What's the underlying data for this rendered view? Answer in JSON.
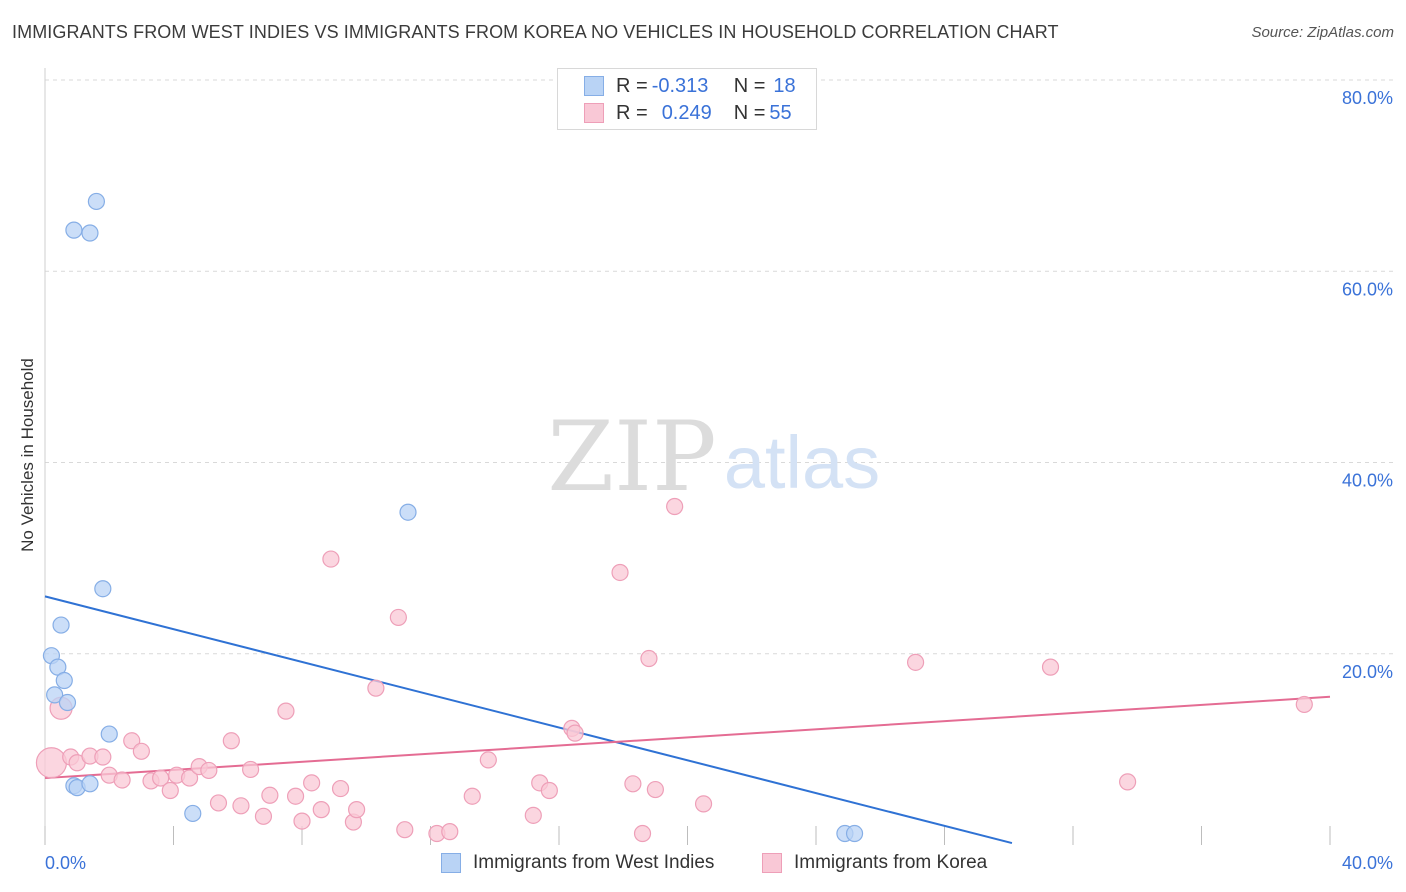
{
  "title": "IMMIGRANTS FROM WEST INDIES VS IMMIGRANTS FROM KOREA NO VEHICLES IN HOUSEHOLD CORRELATION CHART",
  "source": "Source: ZipAtlas.com",
  "watermark": {
    "zip": "ZIP",
    "atlas": "atlas"
  },
  "legend": {
    "rows": [
      {
        "r_label": "R = ",
        "r_value": "-0.313",
        "n_label": "N = ",
        "n_value": "18"
      },
      {
        "r_label": "R = ",
        "r_value": "0.249",
        "n_label": "N = ",
        "n_value": "55"
      }
    ]
  },
  "bottom_legend": {
    "west_indies": "Immigrants from West Indies",
    "korea": "Immigrants from Korea"
  },
  "colors": {
    "blue_fill": "#b9d3f5",
    "blue_stroke": "#86aee6",
    "blue_line": "#2f72d4",
    "pink_fill": "#f9c8d6",
    "pink_stroke": "#ee9fb8",
    "pink_line": "#e46c93",
    "tick_text": "#3a72d8",
    "grid": "#d9d9d9"
  },
  "chart_data": {
    "type": "scatter",
    "title": "IMMIGRANTS FROM WEST INDIES VS IMMIGRANTS FROM KOREA NO VEHICLES IN HOUSEHOLD CORRELATION CHART",
    "xlabel": "",
    "ylabel": "No Vehicles in Household",
    "xlim": [
      0,
      40
    ],
    "ylim": [
      0,
      80
    ],
    "x_tick_labels": [
      "0.0%",
      "40.0%"
    ],
    "y_ticks": [
      20,
      40,
      60,
      80
    ],
    "y_tick_labels": [
      "20.0%",
      "40.0%",
      "60.0%",
      "80.0%"
    ],
    "grid": true,
    "legend_position": "top-center",
    "series": [
      {
        "name": "Immigrants from West Indies",
        "R": -0.313,
        "N": 18,
        "points": [
          [
            0.2,
            19.8
          ],
          [
            0.3,
            15.7
          ],
          [
            0.4,
            18.6
          ],
          [
            0.5,
            23.0
          ],
          [
            0.6,
            17.2
          ],
          [
            0.7,
            14.9
          ],
          [
            0.9,
            6.2
          ],
          [
            1.0,
            6.0
          ],
          [
            1.4,
            6.4
          ],
          [
            0.9,
            64.3
          ],
          [
            1.4,
            64.0
          ],
          [
            1.6,
            67.3
          ],
          [
            1.8,
            26.8
          ],
          [
            2.0,
            11.6
          ],
          [
            4.6,
            3.3
          ],
          [
            11.3,
            34.8
          ],
          [
            24.9,
            1.2
          ],
          [
            25.2,
            1.2
          ]
        ],
        "trend": {
          "x0": 0,
          "y0": 26.0,
          "x1": 30.1,
          "y1": 0.2
        }
      },
      {
        "name": "Immigrants from Korea",
        "R": 0.249,
        "N": 55,
        "points": [
          [
            0.2,
            8.6
          ],
          [
            0.5,
            14.3
          ],
          [
            0.8,
            9.2
          ],
          [
            1.0,
            8.6
          ],
          [
            1.4,
            9.3
          ],
          [
            1.8,
            9.2
          ],
          [
            2.0,
            7.3
          ],
          [
            2.4,
            6.8
          ],
          [
            2.7,
            10.9
          ],
          [
            3.0,
            9.8
          ],
          [
            3.3,
            6.7
          ],
          [
            3.6,
            7.0
          ],
          [
            3.9,
            5.7
          ],
          [
            4.1,
            7.3
          ],
          [
            4.5,
            7.0
          ],
          [
            4.8,
            8.2
          ],
          [
            5.1,
            7.8
          ],
          [
            5.4,
            4.4
          ],
          [
            5.8,
            10.9
          ],
          [
            6.1,
            4.1
          ],
          [
            6.4,
            7.9
          ],
          [
            6.8,
            3.0
          ],
          [
            7.0,
            5.2
          ],
          [
            7.5,
            14.0
          ],
          [
            7.8,
            5.1
          ],
          [
            8.0,
            2.5
          ],
          [
            8.3,
            6.5
          ],
          [
            8.6,
            3.7
          ],
          [
            8.9,
            29.9
          ],
          [
            9.2,
            5.9
          ],
          [
            9.6,
            2.4
          ],
          [
            9.7,
            3.7
          ],
          [
            10.3,
            16.4
          ],
          [
            11.0,
            23.8
          ],
          [
            11.2,
            1.6
          ],
          [
            12.2,
            1.2
          ],
          [
            12.6,
            1.4
          ],
          [
            13.3,
            5.1
          ],
          [
            13.8,
            8.9
          ],
          [
            15.2,
            3.1
          ],
          [
            15.4,
            6.5
          ],
          [
            15.7,
            5.7
          ],
          [
            16.4,
            12.2
          ],
          [
            16.5,
            11.7
          ],
          [
            17.9,
            28.5
          ],
          [
            18.3,
            6.4
          ],
          [
            18.6,
            1.2
          ],
          [
            18.8,
            19.5
          ],
          [
            19.0,
            5.8
          ],
          [
            19.6,
            35.4
          ],
          [
            20.5,
            4.3
          ],
          [
            27.1,
            19.1
          ],
          [
            31.3,
            18.6
          ],
          [
            33.7,
            6.6
          ],
          [
            39.2,
            14.7
          ]
        ],
        "trend": {
          "x0": 0,
          "y0": 7.0,
          "x1": 40,
          "y1": 15.5
        }
      }
    ]
  }
}
